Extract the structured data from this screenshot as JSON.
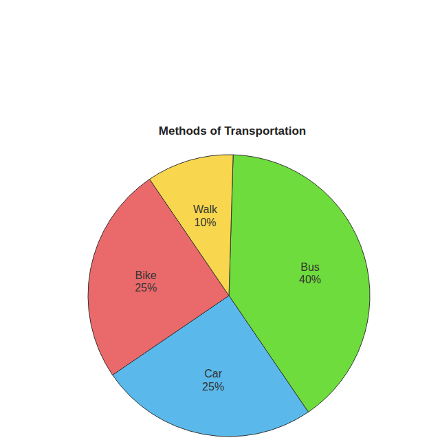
{
  "chart_data": {
    "type": "pie",
    "title": "Methods of Transportation",
    "categories": [
      "Bus",
      "Car",
      "Bike",
      "Walk"
    ],
    "values": [
      40,
      25,
      25,
      10
    ],
    "value_labels": [
      "40%",
      "25%",
      "25%",
      "10%"
    ],
    "colors": [
      "#6edc3c",
      "#5ab9ea",
      "#ea6a6c",
      "#f8d64e"
    ],
    "data_labels": true
  }
}
